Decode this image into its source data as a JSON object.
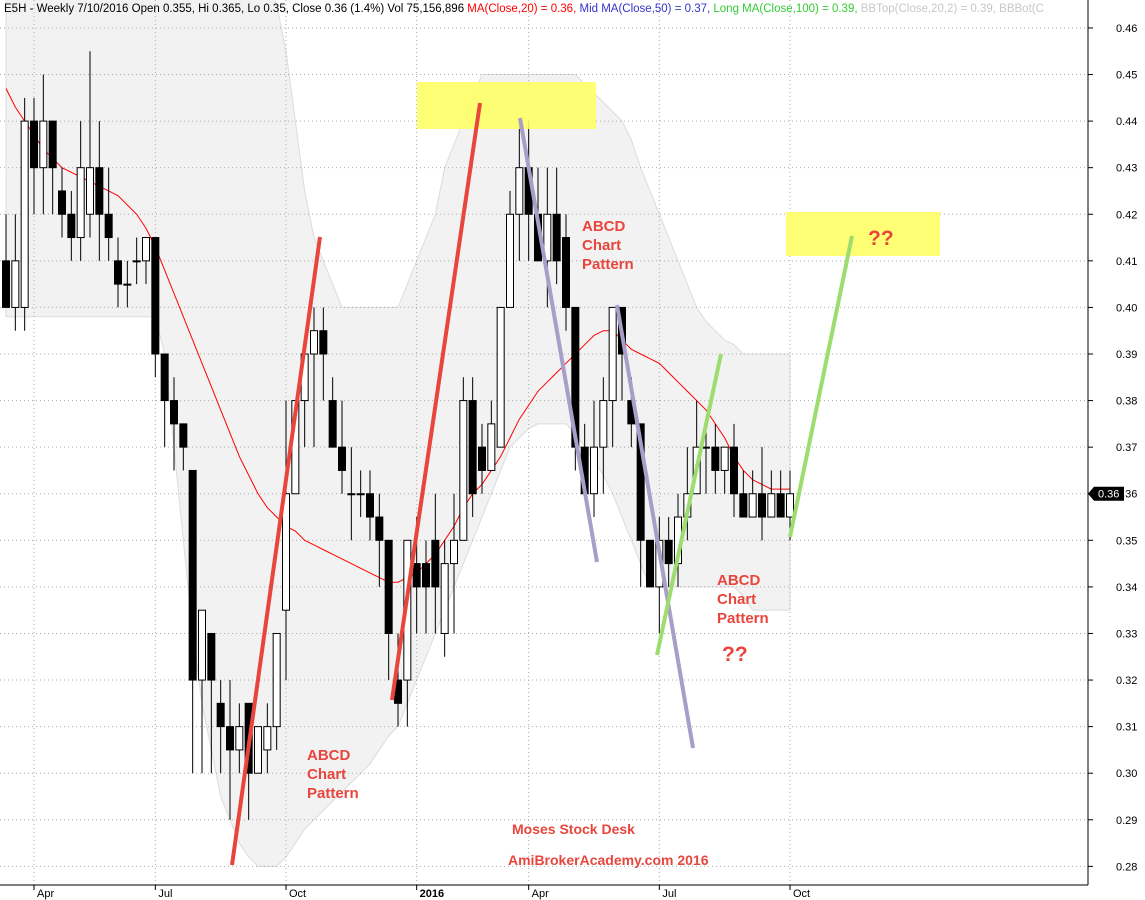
{
  "chart_data": {
    "type": "candlestick",
    "header": [
      {
        "text": "E5H - Weekly 7/10/2016 Open 0.355, Hi 0.365, Lo 0.35, Close 0.36 (1.4%) Vol 75,156,896 ",
        "color": "#000000"
      },
      {
        "text": "MA(Close,20) = 0.36, ",
        "color": "#ff0000"
      },
      {
        "text": "Mid MA(Close,50) = 0.37, ",
        "color": "#3333cc"
      },
      {
        "text": "Long MA(Close,100) = 0.39, ",
        "color": "#33cc33"
      },
      {
        "text": "BBTop(Close,20,2) = 0.39, ",
        "color": "#c8c8c8"
      },
      {
        "text": "BBBot(C",
        "color": "#c8c8c8"
      }
    ],
    "categories": [
      null,
      null,
      null,
      "Apr",
      null,
      null,
      null,
      null,
      null,
      null,
      null,
      null,
      null,
      null,
      null,
      null,
      "Jul",
      null,
      null,
      null,
      null,
      null,
      null,
      null,
      null,
      null,
      null,
      null,
      null,
      null,
      "Oct",
      null,
      null,
      null,
      null,
      null,
      null,
      null,
      null,
      null,
      null,
      null,
      null,
      null,
      "2016",
      null,
      null,
      null,
      null,
      null,
      null,
      null,
      null,
      null,
      null,
      null,
      "Apr",
      null,
      null,
      null,
      null,
      null,
      null,
      null,
      null,
      null,
      null,
      null,
      null,
      null,
      "Jul",
      null,
      null,
      null,
      null,
      null,
      null,
      null,
      null,
      null,
      null,
      null,
      null,
      null,
      "Oct"
    ],
    "open": [
      0.41,
      0.4,
      0.4,
      0.44,
      0.43,
      0.44,
      0.425,
      0.42,
      0.415,
      0.42,
      0.43,
      0.42,
      0.41,
      0.405,
      0.41,
      0.41,
      0.415,
      0.39,
      0.38,
      0.375,
      0.365,
      0.32,
      0.33,
      0.315,
      0.31,
      0.305,
      0.315,
      0.3,
      0.305,
      0.31,
      0.335,
      0.36,
      0.38,
      0.39,
      0.395,
      0.38,
      0.37,
      0.36,
      0.36,
      0.36,
      0.355,
      0.35,
      0.32,
      0.32,
      0.345,
      0.345,
      0.35,
      0.33,
      0.345,
      0.35,
      0.38,
      0.37,
      0.365,
      0.37,
      0.4,
      0.42,
      0.43,
      0.42,
      0.41,
      0.42,
      0.415,
      0.4,
      0.37,
      0.36,
      0.37,
      0.38,
      0.4,
      0.38,
      0.375,
      0.35,
      0.34,
      0.35,
      0.345,
      0.355,
      0.36,
      0.37,
      0.37,
      0.365,
      0.37,
      0.36,
      0.355,
      0.36,
      0.355,
      0.36,
      0.355
    ],
    "high": [
      0.42,
      0.42,
      0.445,
      0.445,
      0.45,
      0.44,
      0.43,
      0.425,
      0.44,
      0.455,
      0.44,
      0.43,
      0.415,
      0.41,
      0.415,
      0.415,
      0.415,
      0.39,
      0.385,
      0.375,
      0.365,
      0.335,
      0.33,
      0.32,
      0.32,
      0.315,
      0.315,
      0.31,
      0.315,
      0.33,
      0.38,
      0.38,
      0.39,
      0.4,
      0.4,
      0.385,
      0.38,
      0.37,
      0.365,
      0.365,
      0.36,
      0.35,
      0.33,
      0.35,
      0.355,
      0.35,
      0.36,
      0.35,
      0.36,
      0.385,
      0.385,
      0.375,
      0.38,
      0.4,
      0.425,
      0.44,
      0.44,
      0.43,
      0.43,
      0.43,
      0.42,
      0.4,
      0.375,
      0.38,
      0.385,
      0.4,
      0.4,
      0.385,
      0.375,
      0.35,
      0.355,
      0.355,
      0.36,
      0.37,
      0.38,
      0.375,
      0.375,
      0.37,
      0.375,
      0.365,
      0.365,
      0.37,
      0.365,
      0.365,
      0.365
    ],
    "low": [
      0.4,
      0.395,
      0.395,
      0.42,
      0.42,
      0.42,
      0.415,
      0.41,
      0.41,
      0.415,
      0.41,
      0.41,
      0.4,
      0.4,
      0.405,
      0.405,
      0.385,
      0.37,
      0.365,
      0.365,
      0.3,
      0.3,
      0.3,
      0.3,
      0.29,
      0.3,
      0.29,
      0.3,
      0.3,
      0.305,
      0.32,
      0.36,
      0.37,
      0.37,
      0.38,
      0.37,
      0.36,
      0.35,
      0.355,
      0.35,
      0.34,
      0.32,
      0.31,
      0.31,
      0.33,
      0.33,
      0.33,
      0.325,
      0.33,
      0.35,
      0.355,
      0.36,
      0.365,
      0.37,
      0.4,
      0.41,
      0.41,
      0.41,
      0.4,
      0.405,
      0.395,
      0.365,
      0.36,
      0.355,
      0.36,
      0.37,
      0.38,
      0.37,
      0.34,
      0.34,
      0.33,
      0.34,
      0.34,
      0.35,
      0.36,
      0.36,
      0.36,
      0.36,
      0.355,
      0.355,
      0.355,
      0.35,
      0.355,
      0.355,
      0.35
    ],
    "close": [
      0.4,
      0.41,
      0.44,
      0.43,
      0.44,
      0.43,
      0.42,
      0.415,
      0.43,
      0.43,
      0.42,
      0.415,
      0.405,
      0.405,
      0.41,
      0.415,
      0.39,
      0.38,
      0.375,
      0.37,
      0.32,
      0.335,
      0.32,
      0.31,
      0.305,
      0.31,
      0.3,
      0.31,
      0.31,
      0.33,
      0.36,
      0.38,
      0.39,
      0.395,
      0.39,
      0.37,
      0.365,
      0.36,
      0.36,
      0.355,
      0.35,
      0.33,
      0.315,
      0.35,
      0.34,
      0.34,
      0.34,
      0.345,
      0.35,
      0.38,
      0.36,
      0.365,
      0.375,
      0.4,
      0.42,
      0.43,
      0.42,
      0.41,
      0.42,
      0.41,
      0.4,
      0.37,
      0.36,
      0.37,
      0.38,
      0.4,
      0.39,
      0.375,
      0.35,
      0.34,
      0.35,
      0.345,
      0.355,
      0.36,
      0.37,
      0.37,
      0.365,
      0.37,
      0.36,
      0.355,
      0.36,
      0.355,
      0.36,
      0.355,
      0.36
    ],
    "up_color": "#ffffff",
    "down_color": "#000000",
    "ma20": [
      0.447,
      0.443,
      0.44,
      0.437,
      0.434,
      0.432,
      0.43,
      0.429,
      0.428,
      0.427,
      0.426,
      0.425,
      0.424,
      0.422,
      0.42,
      0.417,
      0.413,
      0.408,
      0.403,
      0.398,
      0.393,
      0.388,
      0.383,
      0.378,
      0.373,
      0.368,
      0.364,
      0.36,
      0.357,
      0.355,
      0.353,
      0.352,
      0.35,
      0.349,
      0.348,
      0.347,
      0.346,
      0.345,
      0.344,
      0.343,
      0.342,
      0.341,
      0.341,
      0.342,
      0.343,
      0.345,
      0.347,
      0.35,
      0.353,
      0.357,
      0.36,
      0.362,
      0.365,
      0.368,
      0.372,
      0.376,
      0.379,
      0.382,
      0.384,
      0.386,
      0.388,
      0.39,
      0.392,
      0.394,
      0.395,
      0.395,
      0.393,
      0.391,
      0.39,
      0.389,
      0.388,
      0.386,
      0.384,
      0.382,
      0.38,
      0.378,
      0.375,
      0.372,
      0.368,
      0.365,
      0.363,
      0.362,
      0.361,
      0.361,
      0.361
    ],
    "ma_color": "#ff0000",
    "bb_upper": [
      0.47,
      0.47,
      0.47,
      0.47,
      0.47,
      0.47,
      0.47,
      0.47,
      0.47,
      0.47,
      0.47,
      0.47,
      0.47,
      0.47,
      0.47,
      0.47,
      0.47,
      0.47,
      0.47,
      0.47,
      0.47,
      0.47,
      0.47,
      0.47,
      0.47,
      0.47,
      0.47,
      0.47,
      0.47,
      0.465,
      0.455,
      0.44,
      0.425,
      0.415,
      0.41,
      0.405,
      0.4,
      0.4,
      0.4,
      0.4,
      0.4,
      0.4,
      0.4,
      0.405,
      0.41,
      0.415,
      0.42,
      0.43,
      0.435,
      0.44,
      0.445,
      0.45,
      0.45,
      0.45,
      0.45,
      0.45,
      0.45,
      0.45,
      0.45,
      0.45,
      0.45,
      0.45,
      0.448,
      0.446,
      0.444,
      0.442,
      0.44,
      0.436,
      0.43,
      0.425,
      0.42,
      0.415,
      0.41,
      0.405,
      0.4,
      0.397,
      0.395,
      0.393,
      0.392,
      0.39,
      0.39,
      0.39,
      0.39,
      0.39,
      0.39
    ],
    "bb_lower": [
      0.398,
      0.398,
      0.398,
      0.398,
      0.398,
      0.398,
      0.398,
      0.398,
      0.398,
      0.398,
      0.398,
      0.398,
      0.398,
      0.398,
      0.398,
      0.398,
      0.398,
      0.39,
      0.37,
      0.35,
      0.33,
      0.315,
      0.305,
      0.295,
      0.29,
      0.285,
      0.282,
      0.28,
      0.28,
      0.28,
      0.282,
      0.285,
      0.288,
      0.29,
      0.292,
      0.294,
      0.296,
      0.298,
      0.3,
      0.302,
      0.305,
      0.308,
      0.31,
      0.315,
      0.32,
      0.325,
      0.33,
      0.335,
      0.34,
      0.345,
      0.35,
      0.355,
      0.36,
      0.365,
      0.37,
      0.372,
      0.374,
      0.375,
      0.375,
      0.375,
      0.375,
      0.373,
      0.37,
      0.367,
      0.364,
      0.36,
      0.355,
      0.35,
      0.345,
      0.34,
      0.34,
      0.34,
      0.34,
      0.34,
      0.34,
      0.34,
      0.34,
      0.34,
      0.34,
      0.338,
      0.335,
      0.335,
      0.335,
      0.335,
      0.335
    ],
    "band_color": "#f2f2f2",
    "ylim": [
      0.276,
      0.466
    ],
    "yticks": [
      0.28,
      0.29,
      {
        "value": 0.3,
        "label": "0.30"
      },
      0.31,
      0.32,
      0.33,
      0.34,
      0.35,
      0.36,
      0.37,
      0.38,
      0.39,
      {
        "value": 0.4,
        "label": "0.40"
      },
      0.41,
      0.42,
      0.43,
      0.44,
      0.45,
      0.46
    ],
    "grid": true,
    "last_price": 0.36,
    "annotations": [
      [
        "ABCD",
        "Chart",
        "Pattern"
      ],
      [
        "ABCD",
        "Chart",
        "Pattern"
      ],
      [
        "ABCD",
        "Chart",
        "Pattern"
      ],
      "??",
      "??"
    ],
    "watermark": [
      "Moses Stock Desk",
      "AmiBrokerAcademy.com  2016"
    ]
  }
}
